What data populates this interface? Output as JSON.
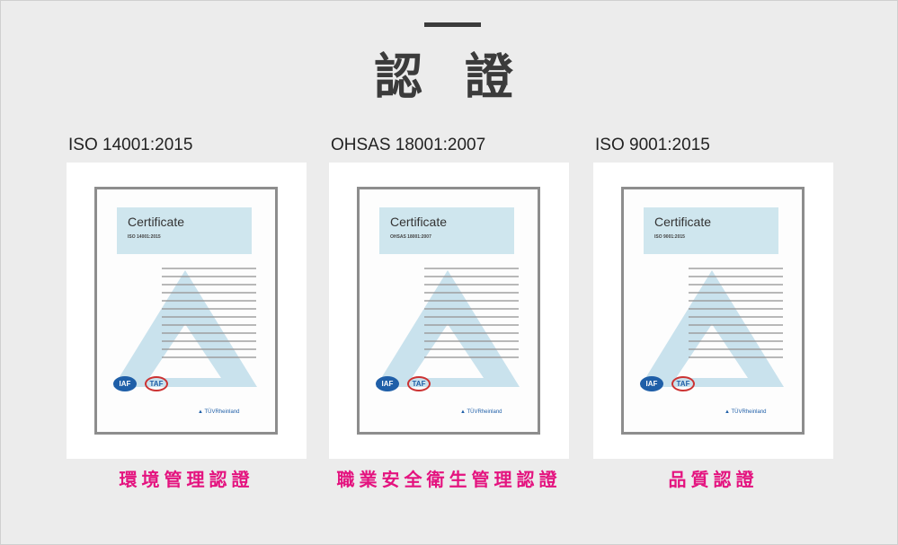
{
  "header": {
    "title": "認 證"
  },
  "certificates": [
    {
      "label": "ISO 14001:2015",
      "caption": "環境管理認證",
      "doc": {
        "heading": "Certificate",
        "standard": "ISO 14001:2015",
        "logos": [
          "IAF",
          "TAF",
          "TÜVRheinland"
        ]
      }
    },
    {
      "label": "OHSAS 18001:2007",
      "caption": "職業安全衛生管理認證",
      "doc": {
        "heading": "Certificate",
        "standard": "OHSAS 18001:2007",
        "logos": [
          "IAF",
          "TAF",
          "TÜVRheinland"
        ]
      }
    },
    {
      "label": "ISO 9001:2015",
      "caption": "品質認證",
      "doc": {
        "heading": "Certificate",
        "standard": "ISO 9001:2015",
        "logos": [
          "IAF",
          "TAF",
          "TÜVRheinland"
        ]
      }
    }
  ],
  "colors": {
    "accent": "#e4137f",
    "background": "#ececec",
    "title": "#3b3b3b"
  }
}
